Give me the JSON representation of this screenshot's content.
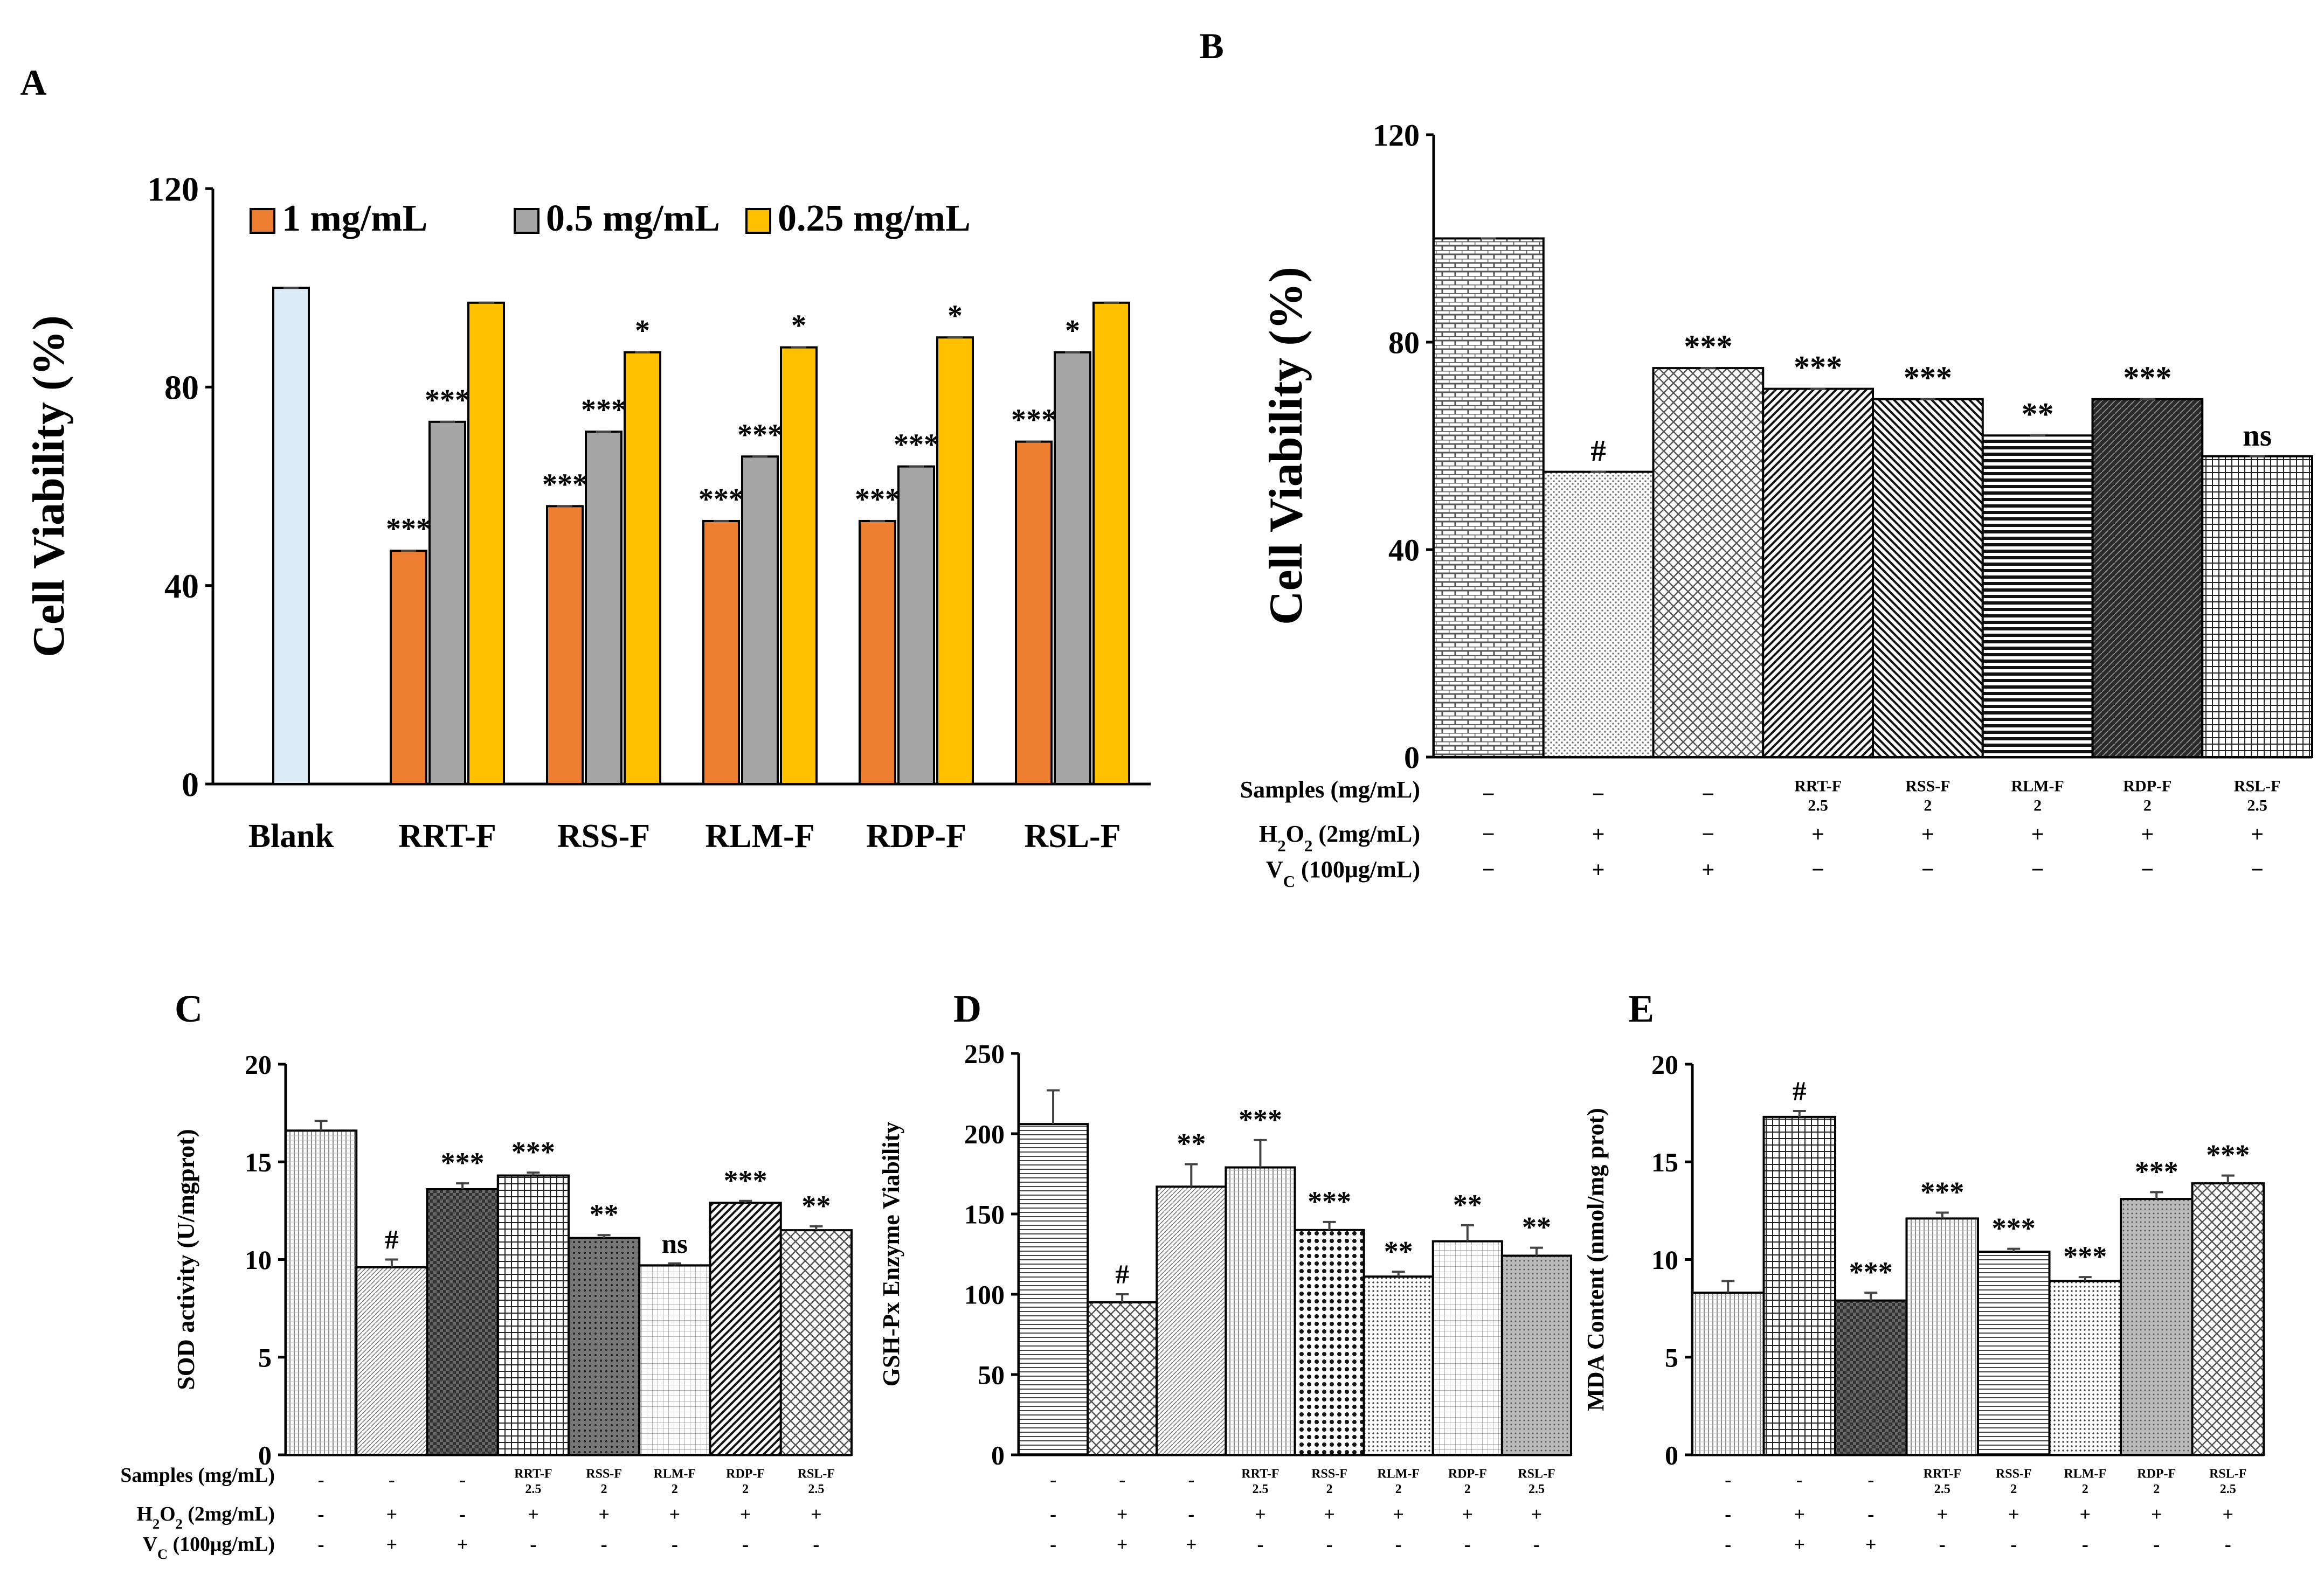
{
  "panel_labels": [
    "A",
    "B",
    "C",
    "D",
    "E"
  ],
  "chart_data": [
    {
      "id": "A",
      "type": "bar",
      "ylabel": "Cell Viability (%)",
      "ylim": [
        0,
        120
      ],
      "yticks": [
        0,
        40,
        80,
        120
      ],
      "categories": [
        "Blank",
        "RRT-F",
        "RSS-F",
        "RLM-F",
        "RDP-F",
        "RSL-F"
      ],
      "legend_position": "top",
      "colors": {
        "blank": "#ddebf7",
        "s1": "#ed7d31",
        "s2": "#a5a5a5",
        "s3": "#ffc000"
      },
      "blank_value": 100,
      "series": [
        {
          "name": "1 mg/mL",
          "values": [
            null,
            47,
            56,
            53,
            53,
            69
          ],
          "sig": [
            "",
            "***",
            "***",
            "***",
            "***",
            "***"
          ]
        },
        {
          "name": "0.5 mg/mL",
          "values": [
            null,
            73,
            71,
            66,
            64,
            87
          ],
          "sig": [
            "",
            "***",
            "***",
            "***",
            "***",
            "*"
          ]
        },
        {
          "name": "0.25 mg/mL",
          "values": [
            null,
            97,
            87,
            88,
            90,
            97
          ],
          "sig": [
            "",
            "",
            "*",
            "*",
            "*",
            ""
          ]
        }
      ]
    },
    {
      "id": "B",
      "type": "bar",
      "ylabel": "Cell Viability (%)",
      "ylim": [
        0,
        120
      ],
      "yticks": [
        0,
        40,
        80,
        120
      ],
      "values": [
        100,
        55,
        75,
        71,
        69,
        62,
        69,
        58
      ],
      "sig": [
        "",
        "#",
        "***",
        "***",
        "***",
        "**",
        "***",
        "ns"
      ],
      "row_labels": [
        "Samples (mg/mL)",
        "H2O2 (2mg/mL)",
        "VC (100μg/mL)"
      ],
      "sample_names": [
        "",
        "",
        "",
        "RRT-F",
        "RSS-F",
        "RLM-F",
        "RDP-F",
        "RSL-F"
      ],
      "sample_doses": [
        "",
        "",
        "",
        "2.5",
        "2",
        "2",
        "2",
        "2.5"
      ],
      "samples_row": [
        "−",
        "−",
        "−",
        "",
        "",
        "",
        "",
        ""
      ],
      "h2o2_row": [
        "−",
        "+",
        "−",
        "+",
        "+",
        "+",
        "+",
        "+"
      ],
      "vc_row": [
        "−",
        "+",
        "+",
        "−",
        "−",
        "−",
        "−",
        "−"
      ]
    },
    {
      "id": "C",
      "type": "bar",
      "ylabel": "SOD activity (U/mgprot)",
      "ylim": [
        0,
        20
      ],
      "yticks": [
        0,
        5,
        10,
        15,
        20
      ],
      "values": [
        16.6,
        9.6,
        13.6,
        14.3,
        11.1,
        9.7,
        12.9,
        11.5
      ],
      "errors": [
        0.5,
        0.4,
        0.3,
        0.15,
        0.15,
        0.1,
        0.1,
        0.2
      ],
      "sig": [
        "",
        "#",
        "***",
        "***",
        "**",
        "ns",
        "***",
        "**"
      ],
      "row_labels": [
        "Samples (mg/mL)",
        "H2O2 (2mg/mL)",
        "VC (100μg/mL)"
      ],
      "sample_names": [
        "",
        "",
        "",
        "RRT-F",
        "RSS-F",
        "RLM-F",
        "RDP-F",
        "RSL-F"
      ],
      "sample_doses": [
        "",
        "",
        "",
        "2.5",
        "2",
        "2",
        "2",
        "2.5"
      ],
      "samples_row": [
        "-",
        "-",
        "-",
        "",
        "",
        "",
        "",
        ""
      ],
      "h2o2_row": [
        "-",
        "+",
        "-",
        "+",
        "+",
        "+",
        "+",
        "+"
      ],
      "vc_row": [
        "-",
        "+",
        "+",
        "-",
        "-",
        "-",
        "-",
        "-"
      ]
    },
    {
      "id": "D",
      "type": "bar",
      "ylabel": "GSH-Px Enzyme Viability",
      "ylim": [
        0,
        250
      ],
      "yticks": [
        0,
        50,
        100,
        150,
        200,
        250
      ],
      "values": [
        206,
        95,
        167,
        179,
        140,
        111,
        133,
        124
      ],
      "errors": [
        21,
        5,
        14,
        17,
        5,
        3,
        10,
        5
      ],
      "sig": [
        "",
        "#",
        "**",
        "***",
        "***",
        "**",
        "**",
        "**"
      ],
      "row_labels": [],
      "sample_names": [
        "",
        "",
        "",
        "RRT-F",
        "RSS-F",
        "RLM-F",
        "RDP-F",
        "RSL-F"
      ],
      "sample_doses": [
        "",
        "",
        "",
        "2.5",
        "2",
        "2",
        "2",
        "2.5"
      ],
      "samples_row": [
        "-",
        "-",
        "-",
        "",
        "",
        "",
        "",
        ""
      ],
      "h2o2_row": [
        "-",
        "+",
        "-",
        "+",
        "+",
        "+",
        "+",
        "+"
      ],
      "vc_row": [
        "-",
        "+",
        "+",
        "-",
        "-",
        "-",
        "-",
        "-"
      ]
    },
    {
      "id": "E",
      "type": "bar",
      "ylabel": "MDA Content (nmol/mg prot)",
      "ylim": [
        0,
        20
      ],
      "yticks": [
        0,
        5,
        10,
        15,
        20
      ],
      "values": [
        8.3,
        17.3,
        7.9,
        12.1,
        10.4,
        8.9,
        13.1,
        13.9
      ],
      "errors": [
        0.6,
        0.3,
        0.4,
        0.3,
        0.15,
        0.2,
        0.35,
        0.4
      ],
      "sig": [
        "",
        "#",
        "***",
        "***",
        "***",
        "***",
        "***",
        "***"
      ],
      "row_labels": [],
      "sample_names": [
        "",
        "",
        "",
        "RRT-F",
        "RSS-F",
        "RLM-F",
        "RDP-F",
        "RSL-F"
      ],
      "sample_doses": [
        "",
        "",
        "",
        "2.5",
        "2",
        "2",
        "2",
        "2.5"
      ],
      "samples_row": [
        "-",
        "-",
        "-",
        "",
        "",
        "",
        "",
        ""
      ],
      "h2o2_row": [
        "-",
        "+",
        "-",
        "+",
        "+",
        "+",
        "+",
        "+"
      ],
      "vc_row": [
        "-",
        "+",
        "+",
        "-",
        "-",
        "-",
        "-",
        "-"
      ]
    }
  ]
}
